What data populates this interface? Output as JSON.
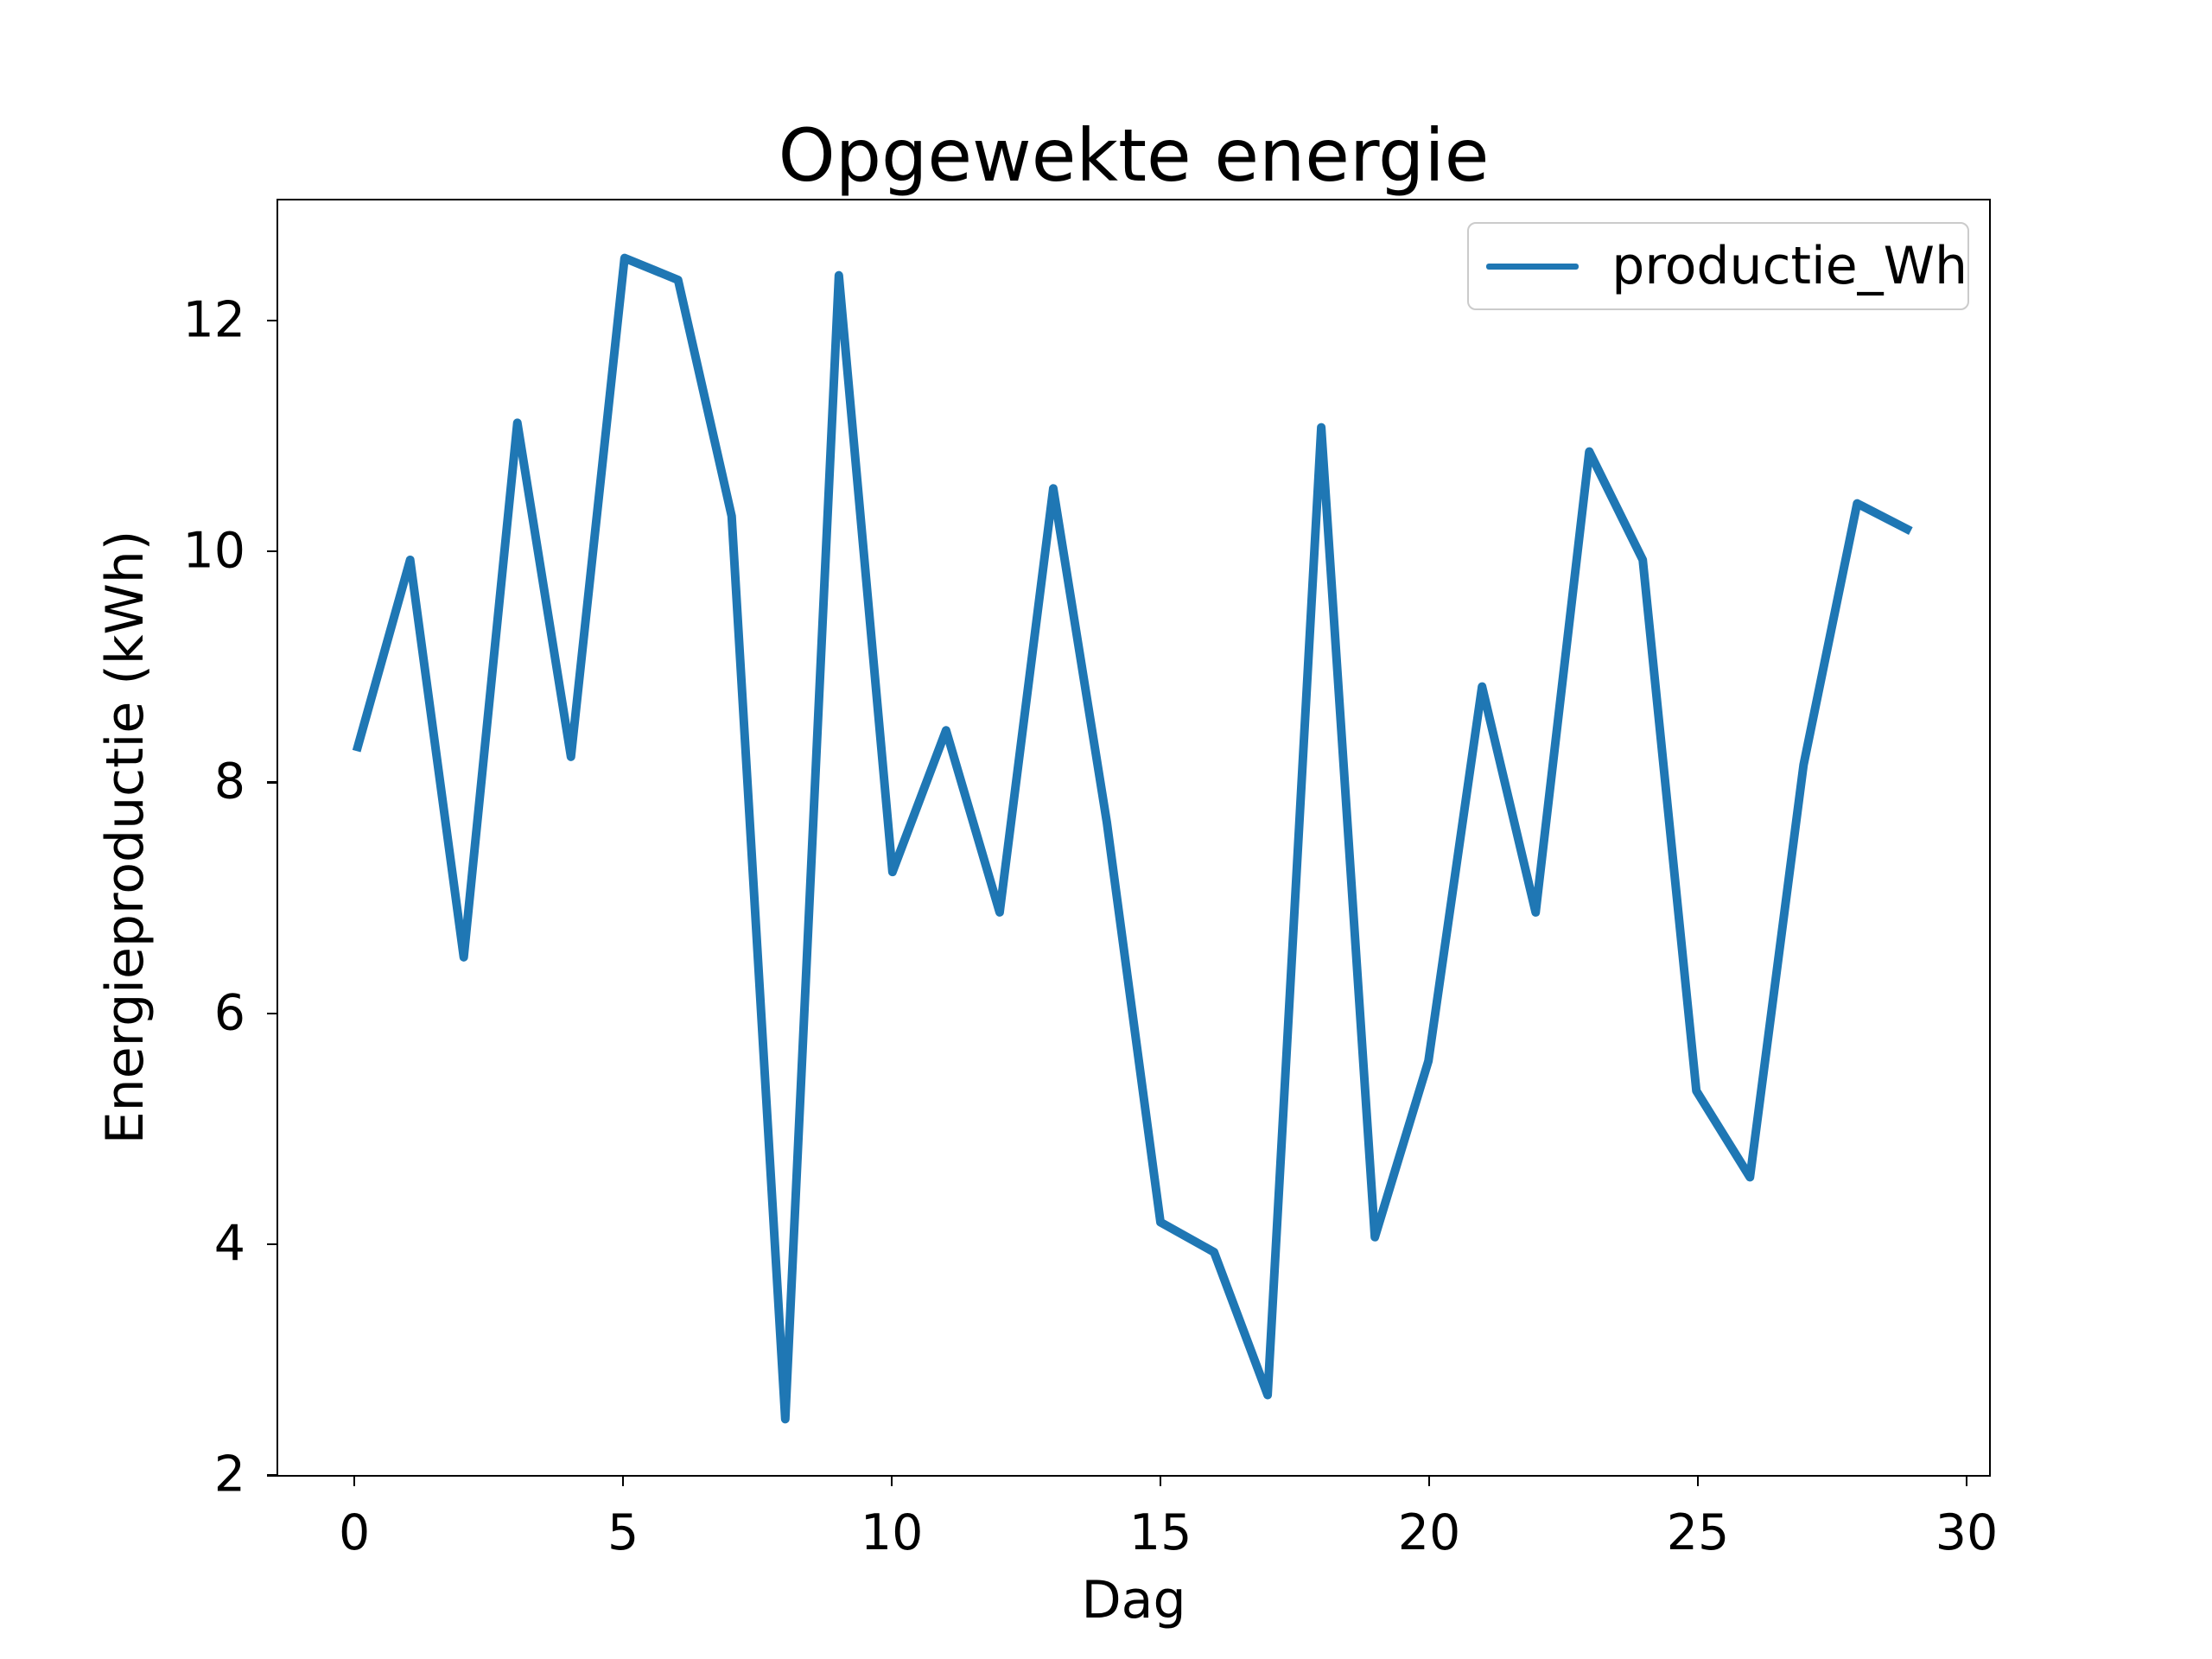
{
  "figure": {
    "background": "#ffffff",
    "axes_color": "#000000",
    "legend_border_color": "#cbcbcb"
  },
  "chart_data": {
    "type": "line",
    "title": "Opgewekte energie",
    "xlabel": "Dag",
    "ylabel": "Energieproductie (kWh)",
    "legend_position": "upper right",
    "grid": false,
    "line_color": "#1f77b4",
    "x": [
      0,
      1,
      2,
      3,
      4,
      5,
      6,
      7,
      8,
      9,
      10,
      11,
      12,
      13,
      14,
      15,
      16,
      17,
      18,
      19,
      20,
      21,
      22,
      23,
      24,
      25,
      26,
      27,
      28,
      29
    ],
    "series": [
      {
        "name": "productie_Wh",
        "color": "#1f77b4",
        "values": [
          8.27,
          9.93,
          6.48,
          11.12,
          8.22,
          12.55,
          12.36,
          10.31,
          2.47,
          12.4,
          7.22,
          8.45,
          6.87,
          10.55,
          7.65,
          4.18,
          3.92,
          2.68,
          11.08,
          4.05,
          5.58,
          8.83,
          6.87,
          10.87,
          9.93,
          5.32,
          4.57,
          8.15,
          10.42,
          10.18
        ]
      }
    ],
    "xlim": [
      -1.45,
      30.45
    ],
    "ylim": [
      1.99,
      13.05
    ],
    "xticks": [
      0,
      5,
      10,
      15,
      20,
      25,
      30
    ],
    "yticks": [
      2,
      4,
      6,
      8,
      10,
      12
    ]
  }
}
